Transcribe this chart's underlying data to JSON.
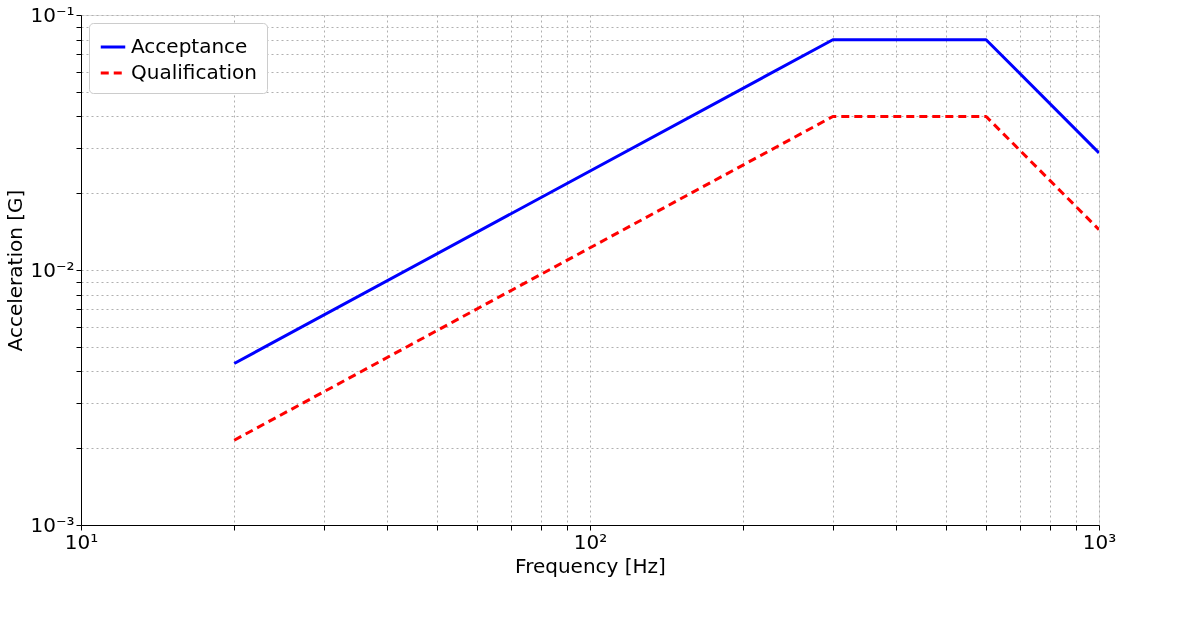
{
  "chart_data": {
    "type": "line",
    "xlabel": "Frequency [Hz]",
    "ylabel": "Acceleration [G]",
    "log": "xy",
    "grid": true,
    "legend": "top left",
    "xlim": [
      10,
      1000
    ],
    "ylim": [
      0.001,
      0.1
    ],
    "xticks": [
      {
        "value": 10,
        "label": "10¹"
      },
      {
        "value": 20,
        "label": null
      },
      {
        "value": 30,
        "label": null
      },
      {
        "value": 40,
        "label": null
      },
      {
        "value": 50,
        "label": null
      },
      {
        "value": 60,
        "label": null
      },
      {
        "value": 70,
        "label": null
      },
      {
        "value": 80,
        "label": null
      },
      {
        "value": 90,
        "label": null
      },
      {
        "value": 100,
        "label": "10²"
      },
      {
        "value": 200,
        "label": null
      },
      {
        "value": 300,
        "label": null
      },
      {
        "value": 400,
        "label": null
      },
      {
        "value": 500,
        "label": null
      },
      {
        "value": 600,
        "label": null
      },
      {
        "value": 700,
        "label": null
      },
      {
        "value": 800,
        "label": null
      },
      {
        "value": 900,
        "label": null
      },
      {
        "value": 1000,
        "label": "10³"
      }
    ],
    "yticks": [
      {
        "value": 0.001,
        "label": "10⁻³"
      },
      {
        "value": 0.002,
        "label": null
      },
      {
        "value": 0.003,
        "label": null
      },
      {
        "value": 0.004,
        "label": null
      },
      {
        "value": 0.005,
        "label": null
      },
      {
        "value": 0.006,
        "label": null
      },
      {
        "value": 0.007,
        "label": null
      },
      {
        "value": 0.008,
        "label": null
      },
      {
        "value": 0.009,
        "label": null
      },
      {
        "value": 0.01,
        "label": "10⁻²"
      },
      {
        "value": 0.02,
        "label": null
      },
      {
        "value": 0.03,
        "label": null
      },
      {
        "value": 0.04,
        "label": null
      },
      {
        "value": 0.05,
        "label": null
      },
      {
        "value": 0.06,
        "label": null
      },
      {
        "value": 0.07,
        "label": null
      },
      {
        "value": 0.08,
        "label": null
      },
      {
        "value": 0.09,
        "label": null
      },
      {
        "value": 0.1,
        "label": "10⁻¹"
      }
    ],
    "x": [
      20,
      300,
      600,
      1000
    ],
    "series": [
      {
        "name": "Acceptance",
        "color": "#0000ff",
        "line_style": "solid",
        "values": [
          0.0043,
          0.08,
          0.08,
          0.0288
        ]
      },
      {
        "name": "Qualification",
        "color": "#ff0000",
        "line_style": "dashed",
        "values": [
          0.00215,
          0.04,
          0.04,
          0.0144
        ]
      }
    ]
  }
}
